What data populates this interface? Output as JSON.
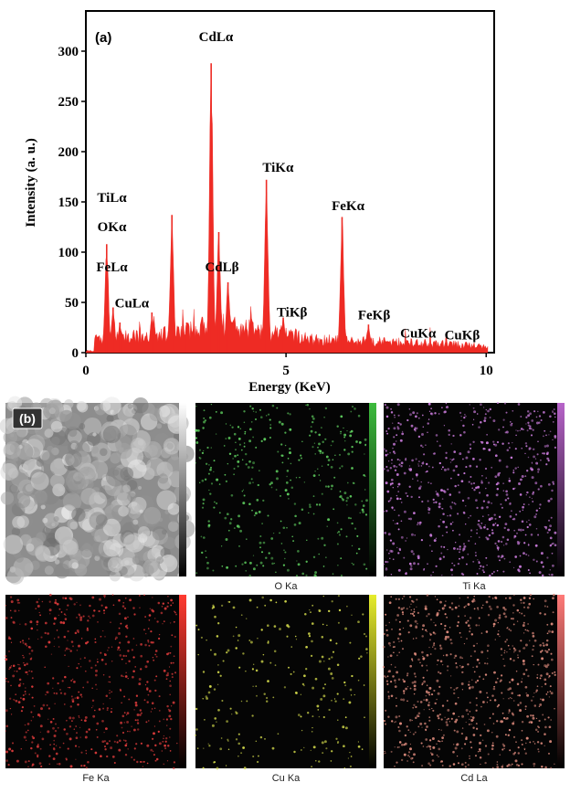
{
  "panel_a": {
    "label": "(a)"
  },
  "panel_b": {
    "label": "(b)",
    "tiles": [
      {
        "caption": "",
        "color": "#cfcfcf",
        "bar_color": "#ffffff",
        "type": "sem"
      },
      {
        "caption": "O  Ka",
        "color": "#5cc85c",
        "bar_color": "#3dbb3d",
        "type": "map",
        "density": 0.55
      },
      {
        "caption": "Ti Ka",
        "color": "#c77ad8",
        "bar_color": "#b764c9",
        "type": "map",
        "density": 1.0
      },
      {
        "caption": "Fe Ka",
        "color": "#d83a3a",
        "bar_color": "#ff3b30",
        "type": "map",
        "density": 0.9
      },
      {
        "caption": "Cu Ka",
        "color": "#cfd64a",
        "bar_color": "#e6ec2c",
        "type": "map",
        "density": 0.35
      },
      {
        "caption": "Cd La",
        "color": "#d9887a",
        "bar_color": "#ff7a78",
        "type": "map",
        "density": 1.1
      }
    ]
  },
  "chart_data": {
    "type": "area",
    "title": "",
    "xlabel": "Energy (KeV)",
    "ylabel": "Intensity (a. u.)",
    "xlim": [
      0,
      10.2
    ],
    "ylim": [
      0,
      340
    ],
    "xticks": [
      0,
      5,
      10
    ],
    "yticks": [
      0,
      50,
      100,
      150,
      200,
      250,
      300
    ],
    "grid": false,
    "legend": "none",
    "color": "#ee2b24",
    "peaks": [
      {
        "x": 0.52,
        "y": 108
      },
      {
        "x": 0.68,
        "y": 45
      },
      {
        "x": 0.85,
        "y": 30
      },
      {
        "x": 1.65,
        "y": 40
      },
      {
        "x": 2.15,
        "y": 137
      },
      {
        "x": 2.52,
        "y": 30
      },
      {
        "x": 3.13,
        "y": 288
      },
      {
        "x": 3.32,
        "y": 120
      },
      {
        "x": 3.55,
        "y": 70
      },
      {
        "x": 4.51,
        "y": 172
      },
      {
        "x": 4.93,
        "y": 35
      },
      {
        "x": 6.4,
        "y": 135
      },
      {
        "x": 7.06,
        "y": 28
      },
      {
        "x": 8.04,
        "y": 12
      },
      {
        "x": 8.9,
        "y": 8
      }
    ],
    "annotations": [
      {
        "text": "CdLα",
        "x": 3.25,
        "y": 310
      },
      {
        "text": "TiKα",
        "x": 4.8,
        "y": 180
      },
      {
        "text": "FeKα",
        "x": 6.55,
        "y": 142
      },
      {
        "text": "TiLα",
        "x": 0.65,
        "y": 150
      },
      {
        "text": "OKα",
        "x": 0.65,
        "y": 121
      },
      {
        "text": "FeLα",
        "x": 0.65,
        "y": 81
      },
      {
        "text": "CuLα",
        "x": 1.15,
        "y": 45
      },
      {
        "text": "CdLβ",
        "x": 3.4,
        "y": 81
      },
      {
        "text": "TiKβ",
        "x": 5.15,
        "y": 36
      },
      {
        "text": "FeKβ",
        "x": 7.2,
        "y": 33
      },
      {
        "text": "CuKα",
        "x": 8.3,
        "y": 15
      },
      {
        "text": "CuKβ",
        "x": 9.4,
        "y": 13
      }
    ]
  }
}
